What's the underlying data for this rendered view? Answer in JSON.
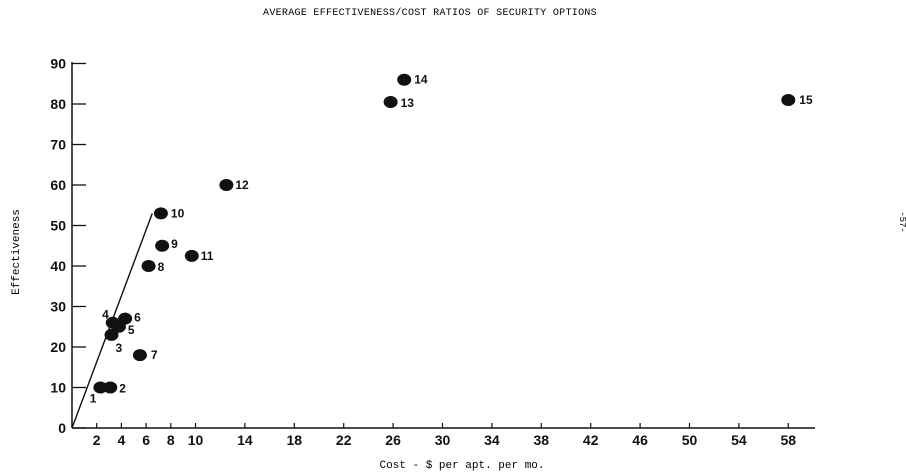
{
  "chart_data": {
    "type": "scatter",
    "title": "AVERAGE EFFECTIVENESS/COST RATIOS OF SECURITY OPTIONS",
    "xlabel": "Cost - $ per apt. per mo.",
    "ylabel": "Effectiveness",
    "xlim": [
      0,
      62
    ],
    "ylim": [
      0,
      90
    ],
    "x_ticks": [
      "2",
      "4",
      "6",
      "8",
      "10",
      "14",
      "18",
      "22",
      "26",
      "30",
      "34",
      "38",
      "42",
      "46",
      "50",
      "54",
      "58"
    ],
    "x_tick_values": [
      2,
      4,
      6,
      8,
      10,
      14,
      18,
      22,
      26,
      30,
      34,
      38,
      42,
      46,
      50,
      54,
      58
    ],
    "y_ticks": [
      "0",
      "10",
      "20",
      "30",
      "40",
      "50",
      "60",
      "70",
      "80",
      "90"
    ],
    "y_tick_values": [
      0,
      10,
      20,
      30,
      40,
      50,
      60,
      70,
      80,
      90
    ],
    "grid": false,
    "points": [
      {
        "label": "1",
        "x": 2.3,
        "y": 10
      },
      {
        "label": "2",
        "x": 3.1,
        "y": 10
      },
      {
        "label": "3",
        "x": 3.2,
        "y": 23
      },
      {
        "label": "4",
        "x": 3.3,
        "y": 26
      },
      {
        "label": "5",
        "x": 3.8,
        "y": 25
      },
      {
        "label": "6",
        "x": 4.3,
        "y": 27
      },
      {
        "label": "7",
        "x": 5.5,
        "y": 18
      },
      {
        "label": "8",
        "x": 6.2,
        "y": 40
      },
      {
        "label": "9",
        "x": 7.3,
        "y": 45
      },
      {
        "label": "10",
        "x": 7.2,
        "y": 53
      },
      {
        "label": "11",
        "x": 9.7,
        "y": 42.5
      },
      {
        "label": "12",
        "x": 12.5,
        "y": 60
      },
      {
        "label": "13",
        "x": 25.8,
        "y": 80.5
      },
      {
        "label": "14",
        "x": 26.9,
        "y": 86
      },
      {
        "label": "15",
        "x": 58.0,
        "y": 81
      }
    ],
    "reference_line": {
      "x": [
        0,
        6.5
      ],
      "y": [
        0,
        53
      ]
    }
  },
  "side_note": "-57-"
}
